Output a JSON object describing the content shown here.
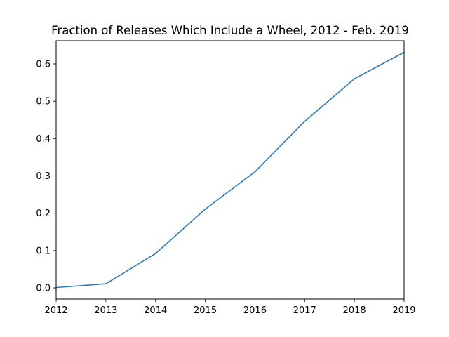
{
  "chart_data": {
    "type": "line",
    "title": "Fraction of Releases Which Include a Wheel, 2012 - Feb. 2019",
    "xlabel": "",
    "ylabel": "",
    "x": [
      2012,
      2013,
      2014,
      2015,
      2016,
      2017,
      2018,
      2019
    ],
    "series": [
      {
        "values": [
          0.001,
          0.011,
          0.092,
          0.211,
          0.311,
          0.446,
          0.56,
          0.631
        ],
        "color": "#2f78b4"
      }
    ],
    "xlim": [
      2012,
      2019
    ],
    "ylim": [
      -0.03,
      0.662
    ],
    "xticks": [
      2012,
      2013,
      2014,
      2015,
      2016,
      2017,
      2018,
      2019
    ],
    "xtick_labels": [
      "2012",
      "2013",
      "2014",
      "2015",
      "2016",
      "2017",
      "2018",
      "2019"
    ],
    "yticks": [
      0.0,
      0.1,
      0.2,
      0.3,
      0.4,
      0.5,
      0.6
    ],
    "ytick_labels": [
      "0.0",
      "0.1",
      "0.2",
      "0.3",
      "0.4",
      "0.5",
      "0.6"
    ],
    "grid": false,
    "legend": "none"
  }
}
